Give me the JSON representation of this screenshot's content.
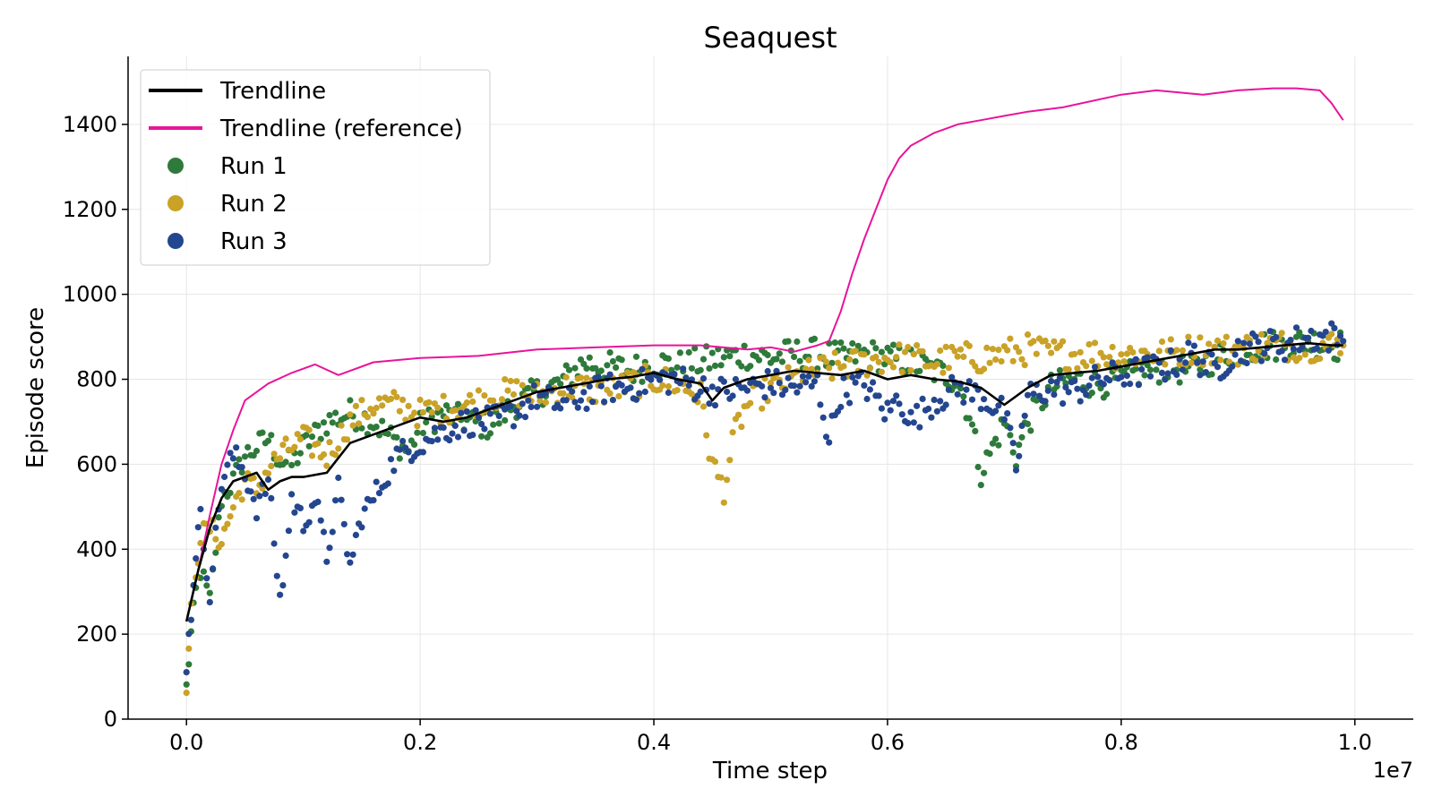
{
  "chart_data": {
    "type": "scatter",
    "title": "Seaquest",
    "xlabel": "Time step",
    "ylabel": "Episode score",
    "x_offset_label": "1e7",
    "xlim": [
      -0.05,
      1.05
    ],
    "ylim": [
      0,
      1560
    ],
    "x_ticks": [
      0.0,
      0.2,
      0.4,
      0.6,
      0.8,
      1.0
    ],
    "x_tick_labels": [
      "0.0",
      "0.2",
      "0.4",
      "0.6",
      "0.8",
      "1.0"
    ],
    "y_ticks": [
      0,
      200,
      400,
      600,
      800,
      1000,
      1200,
      1400
    ],
    "y_tick_labels": [
      "0",
      "200",
      "400",
      "600",
      "800",
      "1000",
      "1200",
      "1400"
    ],
    "grid": true,
    "legend_position": "top-left",
    "colors": {
      "trendline": "#000000",
      "reference": "#e8149a",
      "run1": "#2e7a3a",
      "run2": "#c9a227",
      "run3": "#24468f",
      "grid": "#e6e6e6"
    },
    "legend": [
      {
        "label": "Trendline",
        "kind": "line",
        "color": "#000000"
      },
      {
        "label": "Trendline (reference)",
        "kind": "line",
        "color": "#e8149a"
      },
      {
        "label": "Run 1",
        "kind": "marker",
        "color": "#2e7a3a"
      },
      {
        "label": "Run 2",
        "kind": "marker",
        "color": "#c9a227"
      },
      {
        "label": "Run 3",
        "kind": "marker",
        "color": "#24468f"
      }
    ],
    "series": [
      {
        "name": "Trendline (reference)",
        "kind": "line",
        "color": "#e8149a",
        "x": [
          0.0,
          0.01,
          0.02,
          0.03,
          0.04,
          0.05,
          0.07,
          0.09,
          0.11,
          0.13,
          0.16,
          0.2,
          0.25,
          0.3,
          0.35,
          0.4,
          0.44,
          0.48,
          0.5,
          0.52,
          0.54,
          0.55,
          0.56,
          0.57,
          0.58,
          0.59,
          0.6,
          0.61,
          0.62,
          0.64,
          0.66,
          0.68,
          0.7,
          0.72,
          0.75,
          0.8,
          0.83,
          0.87,
          0.9,
          0.93,
          0.95,
          0.97,
          0.98,
          0.99
        ],
        "y": [
          230,
          350,
          480,
          600,
          680,
          750,
          790,
          815,
          835,
          810,
          840,
          850,
          855,
          870,
          875,
          880,
          880,
          870,
          875,
          865,
          880,
          890,
          960,
          1050,
          1130,
          1200,
          1270,
          1320,
          1350,
          1380,
          1400,
          1410,
          1420,
          1430,
          1440,
          1470,
          1480,
          1470,
          1480,
          1485,
          1485,
          1480,
          1450,
          1410
        ]
      },
      {
        "name": "Trendline",
        "kind": "line",
        "color": "#000000",
        "x": [
          0.0,
          0.01,
          0.02,
          0.03,
          0.04,
          0.05,
          0.06,
          0.07,
          0.08,
          0.09,
          0.1,
          0.12,
          0.14,
          0.16,
          0.18,
          0.2,
          0.22,
          0.24,
          0.26,
          0.28,
          0.3,
          0.32,
          0.34,
          0.36,
          0.38,
          0.4,
          0.42,
          0.44,
          0.45,
          0.46,
          0.48,
          0.5,
          0.52,
          0.54,
          0.56,
          0.58,
          0.6,
          0.62,
          0.64,
          0.66,
          0.68,
          0.7,
          0.72,
          0.74,
          0.76,
          0.78,
          0.8,
          0.82,
          0.84,
          0.86,
          0.88,
          0.9,
          0.92,
          0.94,
          0.96,
          0.98,
          0.99
        ],
        "y": [
          230,
          350,
          450,
          520,
          560,
          570,
          580,
          540,
          560,
          570,
          570,
          580,
          650,
          670,
          690,
          710,
          700,
          710,
          730,
          750,
          770,
          780,
          790,
          800,
          805,
          815,
          800,
          790,
          750,
          780,
          800,
          810,
          820,
          815,
          810,
          820,
          800,
          810,
          800,
          795,
          780,
          740,
          780,
          810,
          815,
          820,
          830,
          840,
          850,
          860,
          870,
          870,
          875,
          880,
          885,
          880,
          880
        ]
      }
    ],
    "scatter_series": [
      {
        "name": "Run 1",
        "color": "#2e7a3a",
        "x": [
          0.0,
          0.004,
          0.008,
          0.012,
          0.02,
          0.03,
          0.04,
          0.05,
          0.06,
          0.07,
          0.08,
          0.09,
          0.1,
          0.12,
          0.14,
          0.16,
          0.18,
          0.19,
          0.2,
          0.22,
          0.24,
          0.26,
          0.28,
          0.3,
          0.32,
          0.34,
          0.36,
          0.38,
          0.4,
          0.42,
          0.44,
          0.46,
          0.48,
          0.5,
          0.52,
          0.54,
          0.56,
          0.58,
          0.6,
          0.62,
          0.64,
          0.66,
          0.67,
          0.68,
          0.69,
          0.7,
          0.71,
          0.72,
          0.74,
          0.76,
          0.78,
          0.8,
          0.82,
          0.84,
          0.86,
          0.88,
          0.9,
          0.92,
          0.94,
          0.96,
          0.98,
          0.99
        ],
        "y": [
          75,
          200,
          300,
          350,
          280,
          520,
          560,
          620,
          640,
          660,
          610,
          600,
          640,
          700,
          720,
          700,
          650,
          630,
          690,
          720,
          700,
          690,
          740,
          770,
          790,
          840,
          830,
          820,
          840,
          830,
          840,
          850,
          860,
          850,
          860,
          860,
          850,
          860,
          850,
          840,
          820,
          800,
          720,
          580,
          640,
          700,
          620,
          700,
          780,
          800,
          790,
          800,
          820,
          830,
          820,
          850,
          870,
          880,
          880,
          890,
          880,
          880
        ]
      },
      {
        "name": "Run 2",
        "color": "#c9a227",
        "x": [
          0.0,
          0.004,
          0.008,
          0.012,
          0.02,
          0.03,
          0.04,
          0.05,
          0.06,
          0.07,
          0.08,
          0.09,
          0.1,
          0.12,
          0.14,
          0.16,
          0.18,
          0.2,
          0.22,
          0.24,
          0.26,
          0.28,
          0.3,
          0.32,
          0.34,
          0.36,
          0.38,
          0.4,
          0.42,
          0.44,
          0.45,
          0.46,
          0.47,
          0.48,
          0.5,
          0.52,
          0.54,
          0.56,
          0.58,
          0.6,
          0.62,
          0.64,
          0.66,
          0.68,
          0.7,
          0.72,
          0.74,
          0.76,
          0.78,
          0.8,
          0.82,
          0.84,
          0.86,
          0.88,
          0.9,
          0.92,
          0.94,
          0.96,
          0.98,
          0.99
        ],
        "y": [
          80,
          250,
          350,
          430,
          450,
          420,
          500,
          560,
          540,
          590,
          620,
          640,
          660,
          620,
          700,
          740,
          740,
          720,
          730,
          740,
          760,
          770,
          760,
          780,
          780,
          770,
          790,
          800,
          790,
          760,
          600,
          540,
          680,
          740,
          780,
          800,
          820,
          830,
          840,
          850,
          850,
          840,
          850,
          850,
          860,
          870,
          860,
          860,
          860,
          860,
          860,
          860,
          870,
          870,
          870,
          880,
          880,
          880,
          880,
          880
        ]
      },
      {
        "name": "Run 3",
        "color": "#24468f",
        "x": [
          0.0,
          0.004,
          0.008,
          0.012,
          0.02,
          0.03,
          0.04,
          0.05,
          0.06,
          0.07,
          0.08,
          0.085,
          0.09,
          0.1,
          0.11,
          0.12,
          0.13,
          0.14,
          0.15,
          0.16,
          0.18,
          0.2,
          0.22,
          0.24,
          0.26,
          0.28,
          0.3,
          0.32,
          0.34,
          0.36,
          0.38,
          0.4,
          0.42,
          0.44,
          0.46,
          0.48,
          0.5,
          0.52,
          0.54,
          0.55,
          0.56,
          0.58,
          0.6,
          0.61,
          0.62,
          0.64,
          0.66,
          0.68,
          0.7,
          0.71,
          0.72,
          0.74,
          0.76,
          0.78,
          0.8,
          0.82,
          0.84,
          0.86,
          0.88,
          0.9,
          0.92,
          0.94,
          0.96,
          0.98,
          0.99
        ],
        "y": [
          130,
          250,
          400,
          470,
          300,
          560,
          620,
          580,
          500,
          560,
          280,
          380,
          520,
          460,
          520,
          380,
          540,
          360,
          480,
          520,
          620,
          650,
          680,
          700,
          700,
          720,
          760,
          740,
          760,
          780,
          780,
          800,
          800,
          780,
          770,
          780,
          790,
          780,
          790,
          660,
          770,
          790,
          720,
          760,
          700,
          750,
          780,
          760,
          720,
          590,
          760,
          780,
          770,
          800,
          810,
          820,
          830,
          860,
          820,
          870,
          880,
          880,
          900,
          900,
          890
        ]
      }
    ]
  }
}
